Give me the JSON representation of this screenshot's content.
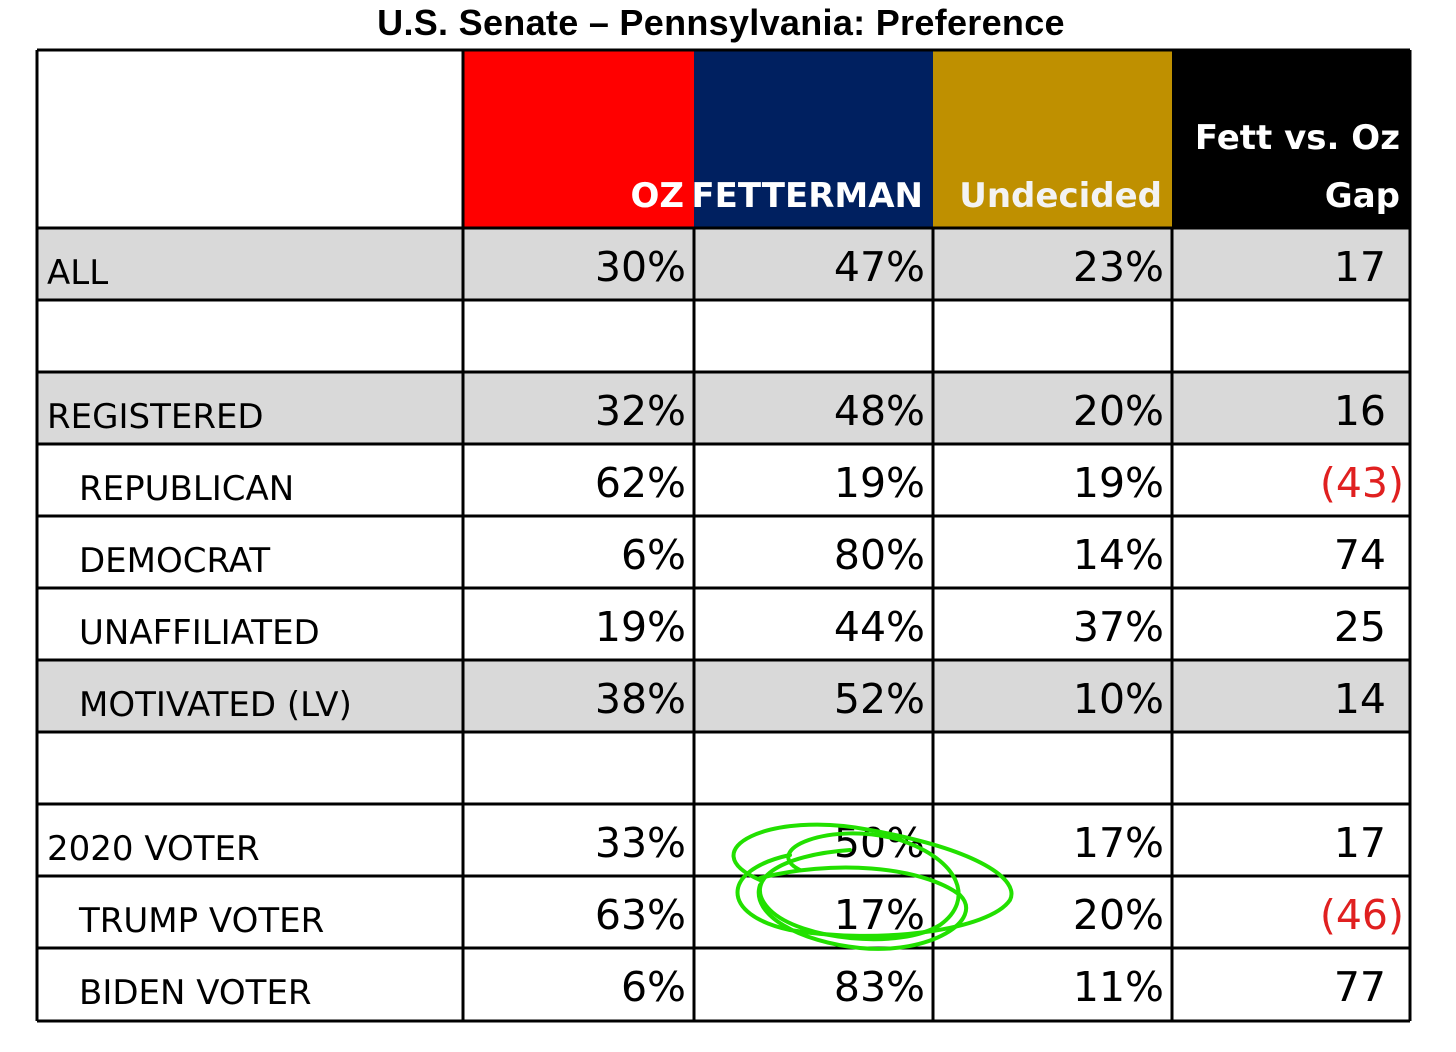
{
  "title": "U.S. Senate – Pennsylvania: Preference",
  "colors": {
    "oz": "#ff0000",
    "fetterman": "#002060",
    "undecided": "#bf9000",
    "gap": "#000000",
    "shaded_row": "#d9d9d9",
    "negative": "#e02020",
    "circle_annotation": "#22e000"
  },
  "chart_data": {
    "type": "table",
    "title": "U.S. Senate – Pennsylvania: Preference",
    "columns": [
      "OZ",
      "FETTERMAN",
      "Undecided",
      "Fett vs. Oz Gap"
    ],
    "column_header_lines": [
      [
        "OZ"
      ],
      [
        "FETTERMAN"
      ],
      [
        "Undecided"
      ],
      [
        "Fett vs. Oz",
        "Gap"
      ]
    ],
    "rows": [
      {
        "label": "ALL",
        "indent": false,
        "shaded": true,
        "values": [
          "30%",
          "47%",
          "23%",
          "17"
        ]
      },
      {
        "label": "",
        "indent": false,
        "shaded": false,
        "values": [
          "",
          "",
          "",
          ""
        ]
      },
      {
        "label": "REGISTERED",
        "indent": false,
        "shaded": true,
        "values": [
          "32%",
          "48%",
          "20%",
          "16"
        ]
      },
      {
        "label": "REPUBLICAN",
        "indent": true,
        "shaded": false,
        "values": [
          "62%",
          "19%",
          "19%",
          "(43)"
        ]
      },
      {
        "label": "DEMOCRAT",
        "indent": true,
        "shaded": false,
        "values": [
          "6%",
          "80%",
          "14%",
          "74"
        ]
      },
      {
        "label": "UNAFFILIATED",
        "indent": true,
        "shaded": false,
        "values": [
          "19%",
          "44%",
          "37%",
          "25"
        ]
      },
      {
        "label": "MOTIVATED (LV)",
        "indent": true,
        "shaded": true,
        "values": [
          "38%",
          "52%",
          "10%",
          "14"
        ]
      },
      {
        "label": "",
        "indent": false,
        "shaded": false,
        "values": [
          "",
          "",
          "",
          ""
        ]
      },
      {
        "label": "2020 VOTER",
        "indent": false,
        "shaded": false,
        "values": [
          "33%",
          "50%",
          "17%",
          "17"
        ]
      },
      {
        "label": "TRUMP VOTER",
        "indent": true,
        "shaded": false,
        "values": [
          "63%",
          "17%",
          "20%",
          "(46)"
        ]
      },
      {
        "label": "BIDEN VOTER",
        "indent": true,
        "shaded": false,
        "values": [
          "6%",
          "83%",
          "11%",
          "77"
        ]
      }
    ],
    "negative_values": [
      "(43)",
      "(46)"
    ],
    "annotation": "hand-drawn green circle around FETTERMAN / TRUMP VOTER value 17%"
  }
}
